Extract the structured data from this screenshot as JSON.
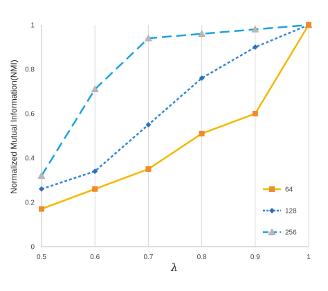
{
  "chart_data": {
    "type": "line",
    "title": "",
    "xlabel": "λ",
    "ylabel": "Normalized Mutual Information(NMI)",
    "x": [
      0.5,
      0.6,
      0.7,
      0.8,
      0.9,
      1
    ],
    "x_tick_labels": [
      "0.5",
      "0.6",
      "0.7",
      "0.8",
      "0.9",
      "1"
    ],
    "y_tick_labels": [
      "0",
      "0.2",
      "0.4",
      "0.6",
      "0.8",
      "1"
    ],
    "y_ticks": [
      0,
      0.2,
      0.4,
      0.6,
      0.8,
      1
    ],
    "xlim": [
      0.5,
      1
    ],
    "ylim": [
      0,
      1
    ],
    "grid": "vertical",
    "legend_position": "right",
    "series": [
      {
        "name": "64",
        "values": [
          0.17,
          0.26,
          0.35,
          0.51,
          0.6,
          1.0
        ],
        "color": "#F5B800",
        "marker": "square",
        "marker_color": "#F08A2C",
        "line_style": "solid"
      },
      {
        "name": "128",
        "values": [
          0.26,
          0.34,
          0.55,
          0.76,
          0.9,
          1.0
        ],
        "color": "#2E86DE",
        "marker": "diamond",
        "marker_color": "#2E6FC4",
        "line_style": "dotted"
      },
      {
        "name": "256",
        "values": [
          0.32,
          0.71,
          0.94,
          0.96,
          0.98,
          1.0
        ],
        "color": "#1BA1E2",
        "marker": "triangle",
        "marker_color": "#B8B8B8",
        "line_style": "dashed"
      }
    ]
  }
}
